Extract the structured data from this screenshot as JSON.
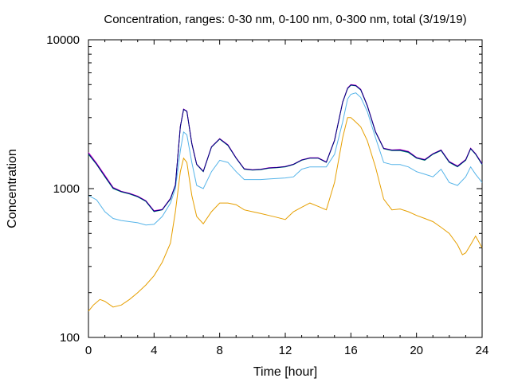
{
  "chart_data": {
    "type": "line",
    "title": "Concentration, ranges: 0-30 nm, 0-100 nm, 0-300 nm, total (3/19/19)",
    "xlabel": "Time [hour]",
    "ylabel": "Concentration",
    "xlim": [
      0,
      24
    ],
    "ylim": [
      100,
      10000
    ],
    "yscale": "log",
    "grid": false,
    "legend": "none",
    "xticks": [
      0,
      4,
      8,
      12,
      16,
      20,
      24
    ],
    "xtick_labels": [
      "0",
      "4",
      "8",
      "12",
      "16",
      "20",
      "24"
    ],
    "yticks": [
      100,
      1000,
      10000
    ],
    "ytick_labels": [
      "100",
      "1000",
      "10000"
    ],
    "series": [
      {
        "color": "#e69f00",
        "x": [
          0,
          0.3,
          0.7,
          1.0,
          1.5,
          2.0,
          2.5,
          3.0,
          3.5,
          4.0,
          4.5,
          5.0,
          5.3,
          5.6,
          5.8,
          6.0,
          6.3,
          6.6,
          7.0,
          7.5,
          8.0,
          8.5,
          9.0,
          9.5,
          10.0,
          10.5,
          11.0,
          11.5,
          12.0,
          12.5,
          13.0,
          13.5,
          14.0,
          14.5,
          15.0,
          15.5,
          15.8,
          16.0,
          16.3,
          16.6,
          17.0,
          17.5,
          18.0,
          18.5,
          19.0,
          19.5,
          20.0,
          20.5,
          21.0,
          21.5,
          22.0,
          22.5,
          22.8,
          23.0,
          23.3,
          23.6,
          24.0
        ],
        "y": [
          150,
          165,
          180,
          175,
          160,
          165,
          180,
          200,
          225,
          260,
          320,
          430,
          700,
          1300,
          1600,
          1500,
          900,
          650,
          580,
          700,
          800,
          800,
          780,
          720,
          700,
          680,
          660,
          640,
          620,
          700,
          750,
          800,
          760,
          720,
          1100,
          2200,
          3000,
          3000,
          2800,
          2600,
          2100,
          1400,
          850,
          720,
          730,
          700,
          660,
          630,
          600,
          550,
          500,
          420,
          360,
          370,
          420,
          480,
          400
        ]
      },
      {
        "color": "#56b4e9",
        "x": [
          0,
          0.5,
          1.0,
          1.5,
          2.0,
          2.5,
          3.0,
          3.5,
          4.0,
          4.5,
          5.0,
          5.3,
          5.6,
          5.8,
          6.0,
          6.3,
          6.6,
          7.0,
          7.5,
          8.0,
          8.5,
          9.0,
          9.5,
          10.0,
          10.5,
          11.0,
          11.5,
          12.0,
          12.5,
          13.0,
          13.5,
          14.0,
          14.5,
          15.0,
          15.5,
          15.8,
          16.0,
          16.3,
          16.6,
          17.0,
          17.5,
          18.0,
          18.5,
          19.0,
          19.5,
          20.0,
          20.5,
          21.0,
          21.5,
          22.0,
          22.5,
          23.0,
          23.3,
          23.6,
          24.0
        ],
        "y": [
          900,
          840,
          700,
          630,
          610,
          600,
          590,
          570,
          575,
          650,
          800,
          1000,
          1800,
          2400,
          2300,
          1500,
          1050,
          1000,
          1300,
          1550,
          1500,
          1300,
          1150,
          1150,
          1150,
          1160,
          1170,
          1180,
          1200,
          1350,
          1400,
          1400,
          1400,
          1700,
          2800,
          4000,
          4300,
          4400,
          4100,
          3300,
          2200,
          1500,
          1450,
          1450,
          1400,
          1300,
          1250,
          1200,
          1350,
          1100,
          1050,
          1200,
          1400,
          1250,
          1100
        ]
      },
      {
        "color": "#009e73",
        "x": [
          0,
          0.5,
          1.0,
          1.5,
          2.0,
          2.5,
          3.0,
          3.5,
          4.0,
          4.5,
          5.0,
          5.3,
          5.6,
          5.8,
          6.0,
          6.3,
          6.6,
          7.0,
          7.5,
          8.0,
          8.5,
          9.0,
          9.5,
          10.0,
          10.5,
          11.0,
          11.5,
          12.0,
          12.5,
          13.0,
          13.5,
          14.0,
          14.5,
          15.0,
          15.5,
          15.8,
          16.0,
          16.3,
          16.6,
          17.0,
          17.5,
          18.0,
          18.5,
          19.0,
          19.5,
          20.0,
          20.5,
          21.0,
          21.5,
          22.0,
          22.5,
          23.0,
          23.3,
          23.6,
          24.0
        ],
        "y": [
          1700,
          1450,
          1200,
          1000,
          950,
          920,
          880,
          820,
          700,
          720,
          850,
          1050,
          2600,
          3400,
          3300,
          2000,
          1450,
          1300,
          1900,
          2150,
          1950,
          1600,
          1350,
          1330,
          1340,
          1370,
          1380,
          1400,
          1450,
          1550,
          1600,
          1600,
          1500,
          2100,
          3800,
          4700,
          4950,
          4900,
          4600,
          3600,
          2400,
          1850,
          1800,
          1800,
          1750,
          1600,
          1550,
          1700,
          1800,
          1500,
          1400,
          1550,
          1850,
          1700,
          1450
        ]
      },
      {
        "color": "#cc00cc",
        "x": [
          0,
          0.5,
          1.0,
          1.5,
          2.0,
          2.5,
          3.0,
          3.5,
          4.0,
          4.5,
          5.0,
          5.3,
          5.6,
          5.8,
          6.0,
          6.3,
          6.6,
          7.0,
          7.5,
          8.0,
          8.5,
          9.0,
          9.5,
          10.0,
          10.5,
          11.0,
          11.5,
          12.0,
          12.5,
          13.0,
          13.5,
          14.0,
          14.5,
          15.0,
          15.5,
          15.8,
          16.0,
          16.3,
          16.6,
          17.0,
          17.5,
          18.0,
          18.5,
          19.0,
          19.5,
          20.0,
          20.5,
          21.0,
          21.5,
          22.0,
          22.5,
          23.0,
          23.3,
          23.6,
          24.0
        ],
        "y": [
          1750,
          1480,
          1230,
          1020,
          960,
          930,
          890,
          830,
          710,
          725,
          860,
          1060,
          2620,
          3420,
          3320,
          2020,
          1460,
          1310,
          1910,
          2170,
          1970,
          1610,
          1360,
          1340,
          1350,
          1380,
          1390,
          1410,
          1460,
          1560,
          1610,
          1610,
          1510,
          2120,
          3820,
          4750,
          5000,
          4950,
          4650,
          3630,
          2420,
          1870,
          1820,
          1830,
          1780,
          1620,
          1570,
          1720,
          1820,
          1520,
          1420,
          1570,
          1870,
          1720,
          1470
        ]
      },
      {
        "color": "#000080",
        "x": [
          0,
          0.5,
          1.0,
          1.5,
          2.0,
          2.5,
          3.0,
          3.5,
          4.0,
          4.5,
          5.0,
          5.3,
          5.6,
          5.8,
          6.0,
          6.3,
          6.6,
          7.0,
          7.5,
          8.0,
          8.5,
          9.0,
          9.5,
          10.0,
          10.5,
          11.0,
          11.5,
          12.0,
          12.5,
          13.0,
          13.5,
          14.0,
          14.5,
          15.0,
          15.5,
          15.8,
          16.0,
          16.3,
          16.6,
          17.0,
          17.5,
          18.0,
          18.5,
          19.0,
          19.5,
          20.0,
          20.5,
          21.0,
          21.5,
          22.0,
          22.5,
          23.0,
          23.3,
          23.6,
          24.0
        ],
        "y": [
          1720,
          1460,
          1210,
          1010,
          955,
          925,
          885,
          825,
          705,
          722,
          855,
          1055,
          2610,
          3410,
          3310,
          2010,
          1455,
          1305,
          1905,
          2160,
          1960,
          1605,
          1355,
          1335,
          1345,
          1375,
          1385,
          1405,
          1455,
          1555,
          1605,
          1605,
          1505,
          2110,
          3810,
          4720,
          4970,
          4920,
          4620,
          3610,
          2410,
          1860,
          1810,
          1815,
          1765,
          1610,
          1560,
          1710,
          1810,
          1510,
          1410,
          1560,
          1860,
          1710,
          1460
        ]
      }
    ]
  }
}
